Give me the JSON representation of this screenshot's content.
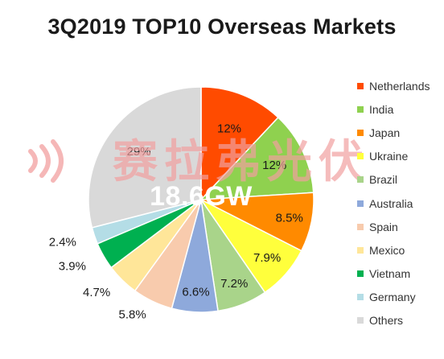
{
  "chart_data": {
    "type": "pie",
    "title": "3Q2019 TOP10 Overseas Markets",
    "center_label": "18.6GW",
    "slices": [
      {
        "name": "Netherlands",
        "value": 12,
        "label": "12%",
        "color": "#ff4b00"
      },
      {
        "name": "India",
        "value": 12,
        "label": "12%",
        "color": "#8fd14f"
      },
      {
        "name": "Japan",
        "value": 8.5,
        "label": "8.5%",
        "color": "#ff8a00"
      },
      {
        "name": "Ukraine",
        "value": 7.9,
        "label": "7.9%",
        "color": "#ffff3c"
      },
      {
        "name": "Brazil",
        "value": 7.2,
        "label": "7.2%",
        "color": "#a9d48a"
      },
      {
        "name": "Australia",
        "value": 6.6,
        "label": "6.6%",
        "color": "#8ea9db"
      },
      {
        "name": "Spain",
        "value": 5.8,
        "label": "5.8%",
        "color": "#f8cbad"
      },
      {
        "name": "Mexico",
        "value": 4.7,
        "label": "4.7%",
        "color": "#ffe699"
      },
      {
        "name": "Vietnam",
        "value": 3.9,
        "label": "3.9%",
        "color": "#00b050"
      },
      {
        "name": "Germany",
        "value": 2.4,
        "label": "2.4%",
        "color": "#b4dde6"
      },
      {
        "name": "Others",
        "value": 29,
        "label": "29%",
        "color": "#d9d9d9"
      }
    ],
    "legend_placement": "right"
  },
  "watermark": {
    "text": "赛拉弗光伏",
    "color": "#f2a0a0"
  }
}
